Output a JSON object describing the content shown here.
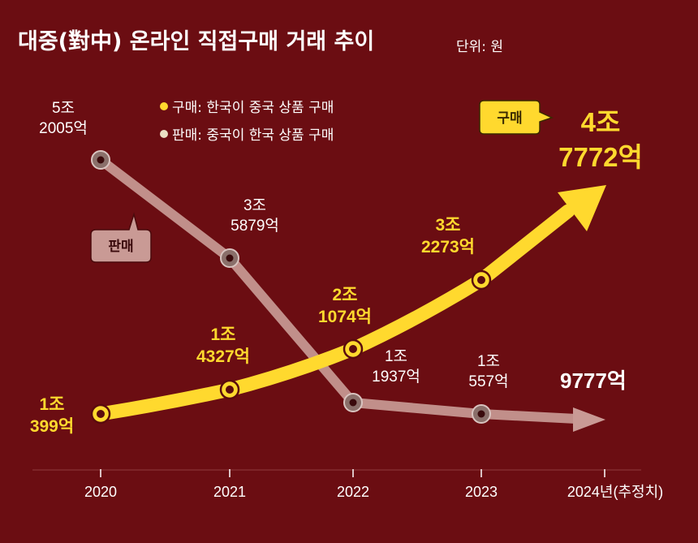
{
  "chart_data": {
    "type": "line",
    "title": "대중(對中) 온라인 직접구매 거래 추이",
    "unit": "단위: 원",
    "categories": [
      "2020",
      "2021",
      "2022",
      "2023",
      "2024년(추정치)"
    ],
    "legend": [
      {
        "text": "구매: 한국이 중국 상품 구매",
        "color": "#ffd92e"
      },
      {
        "text": "판매: 중국이 한국 상품 구매",
        "color": "#ecdfc4"
      }
    ],
    "series": [
      {
        "name": "구매",
        "color": "#ffd92e",
        "values": [
          10399,
          14327,
          21074,
          32273,
          47772
        ],
        "labels": [
          [
            "1조",
            "399억"
          ],
          [
            "1조",
            "4327억"
          ],
          [
            "2조",
            "1074억"
          ],
          [
            "3조",
            "2273억"
          ],
          [
            "4조",
            "7772억"
          ]
        ]
      },
      {
        "name": "판매",
        "color": "#c99a95",
        "values": [
          52005,
          35879,
          11937,
          10557,
          9777
        ],
        "labels": [
          [
            "5조",
            "2005억"
          ],
          [
            "3조",
            "5879억"
          ],
          [
            "1조",
            "1937억"
          ],
          [
            "1조",
            "557억"
          ],
          [
            "9777억"
          ]
        ]
      }
    ],
    "callouts": {
      "buy": "구매",
      "sell": "판매"
    },
    "ylim": [
      0,
      60000
    ]
  }
}
